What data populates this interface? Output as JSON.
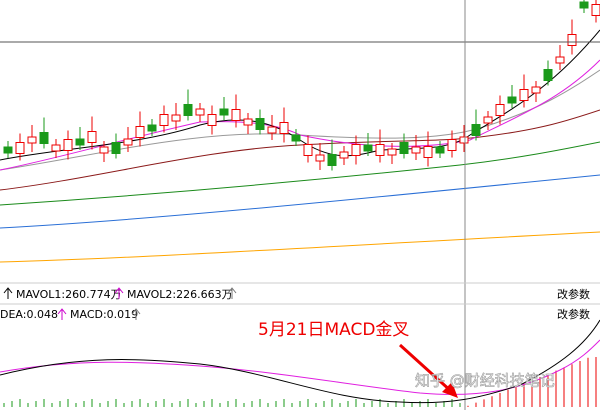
{
  "indicators": {
    "mavol1": "MAVOL1:260.774万",
    "mavol2": "MAVOL2:226.663万",
    "dea": "DEA:0.048",
    "macd": "MACD:0.019"
  },
  "buttons": [
    "改参数",
    "改参数"
  ],
  "annotation": "5月21日MACD金叉",
  "watermark": "知乎 @财经科技笔记"
}
